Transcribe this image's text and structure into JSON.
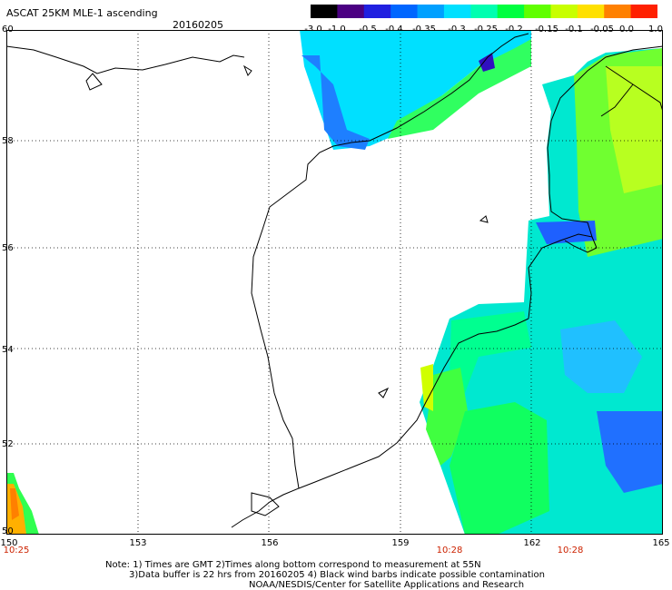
{
  "header": {
    "title": "ASCAT 25KM MLE-1 ascending",
    "date": "20160205"
  },
  "colorbar": {
    "ticks": [
      "-3.0",
      "-1.0",
      "-0.5",
      "-0.4",
      "-0.35",
      "-0.3",
      "-0.25",
      "-0.2",
      "-0.15",
      "-0.1",
      "-0.05",
      "0.0",
      "1.0"
    ],
    "colors": [
      "#000000",
      "#4b0082",
      "#2020e0",
      "#0066ff",
      "#00a0ff",
      "#00e0ff",
      "#00ffb0",
      "#00ff40",
      "#60ff00",
      "#c8ff00",
      "#ffe000",
      "#ff8000",
      "#ff2000"
    ]
  },
  "map": {
    "lat_labels": [
      "60",
      "58",
      "56",
      "54",
      "52",
      "50"
    ],
    "lon_labels": [
      "150",
      "153",
      "156",
      "159",
      "162",
      "165"
    ],
    "time_labels": [
      "10:25",
      "10:28",
      "10:28"
    ],
    "coast_color": "#000000",
    "grid_color": "#000000"
  },
  "notes": {
    "line1": "Note: 1) Times are GMT 2)Times along bottom correspond to measurement at 55N",
    "line2": "3)Data buffer is 22 hrs from 20160205 4) Black wind barbs indicate possible contamination",
    "line3": "NOAA/NESDIS/Center for Satellite Applications and Research"
  }
}
